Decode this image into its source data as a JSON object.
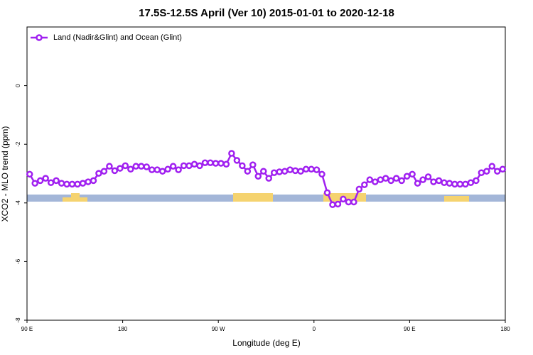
{
  "chart_data": {
    "type": "line",
    "title": "17.5S-12.5S April (Ver 10)   2015-01-01 to 2020-12-18",
    "x_label": "Longitude (deg E)",
    "y_label": "XCO2 - MLO trend (ppm)",
    "legend": "top-left",
    "x": [
      92.5,
      97.5,
      102.5,
      107.5,
      112.5,
      117.5,
      122.5,
      127.5,
      132.5,
      137.5,
      142.5,
      147.5,
      152.5,
      157.5,
      162.5,
      167.5,
      172.5,
      177.5,
      182.5,
      187.5,
      192.5,
      197.5,
      202.5,
      207.5,
      212.5,
      217.5,
      222.5,
      227.5,
      232.5,
      237.5,
      242.5,
      247.5,
      252.5,
      257.5,
      262.5,
      267.5,
      272.5,
      277.5,
      282.5,
      287.5,
      292.5,
      297.5,
      302.5,
      307.5,
      312.5,
      317.5,
      322.5,
      327.5,
      332.5,
      337.5,
      342.5,
      347.5,
      352.5,
      357.5,
      362.5,
      367.5,
      372.5,
      377.5,
      382.5,
      387.5,
      392.5,
      397.5,
      402.5,
      407.5,
      412.5,
      417.5,
      422.5,
      427.5,
      432.5,
      437.5,
      442.5,
      447.5,
      452.5,
      457.5,
      462.5,
      467.5,
      472.5,
      477.5,
      482.5,
      487.5,
      492.5,
      497.5,
      502.5,
      507.5,
      512.5,
      517.5,
      522.5,
      527.5,
      532.5,
      537.5
    ],
    "series": [
      {
        "name": "Land (Nadir&Glint) and Ocean (Glint)",
        "color": "#a020f0",
        "values": [
          -3.02,
          -3.33,
          -3.24,
          -3.16,
          -3.31,
          -3.24,
          -3.33,
          -3.36,
          -3.36,
          -3.36,
          -3.33,
          -3.28,
          -3.24,
          -2.99,
          -2.92,
          -2.75,
          -2.9,
          -2.82,
          -2.73,
          -2.85,
          -2.75,
          -2.75,
          -2.77,
          -2.87,
          -2.87,
          -2.92,
          -2.85,
          -2.75,
          -2.87,
          -2.73,
          -2.73,
          -2.68,
          -2.73,
          -2.63,
          -2.63,
          -2.65,
          -2.65,
          -2.68,
          -2.31,
          -2.55,
          -2.73,
          -2.92,
          -2.7,
          -3.09,
          -2.92,
          -3.16,
          -2.97,
          -2.94,
          -2.92,
          -2.87,
          -2.9,
          -2.92,
          -2.85,
          -2.85,
          -2.87,
          -3.02,
          -3.65,
          -4.06,
          -4.04,
          -3.87,
          -3.97,
          -3.97,
          -3.53,
          -3.38,
          -3.21,
          -3.28,
          -3.21,
          -3.16,
          -3.24,
          -3.16,
          -3.24,
          -3.09,
          -3.02,
          -3.33,
          -3.21,
          -3.11,
          -3.28,
          -3.24,
          -3.31,
          -3.33,
          -3.36,
          -3.36,
          -3.36,
          -3.31,
          -3.24,
          -2.97,
          -2.92,
          -2.75,
          -2.92,
          -2.85
        ]
      }
    ],
    "xlim": [
      90,
      540
    ],
    "xticks": [
      {
        "value": 90,
        "label": "90 E"
      },
      180,
      {
        "value": 270,
        "label": "90 W"
      },
      {
        "value": 360,
        "label": "0"
      },
      {
        "value": 450,
        "label": "90 E"
      },
      {
        "value": 540,
        "label": "180"
      }
    ],
    "ylim": [
      -8,
      2
    ],
    "yticks": [
      -8,
      -6,
      -4,
      -2,
      0
    ]
  }
}
